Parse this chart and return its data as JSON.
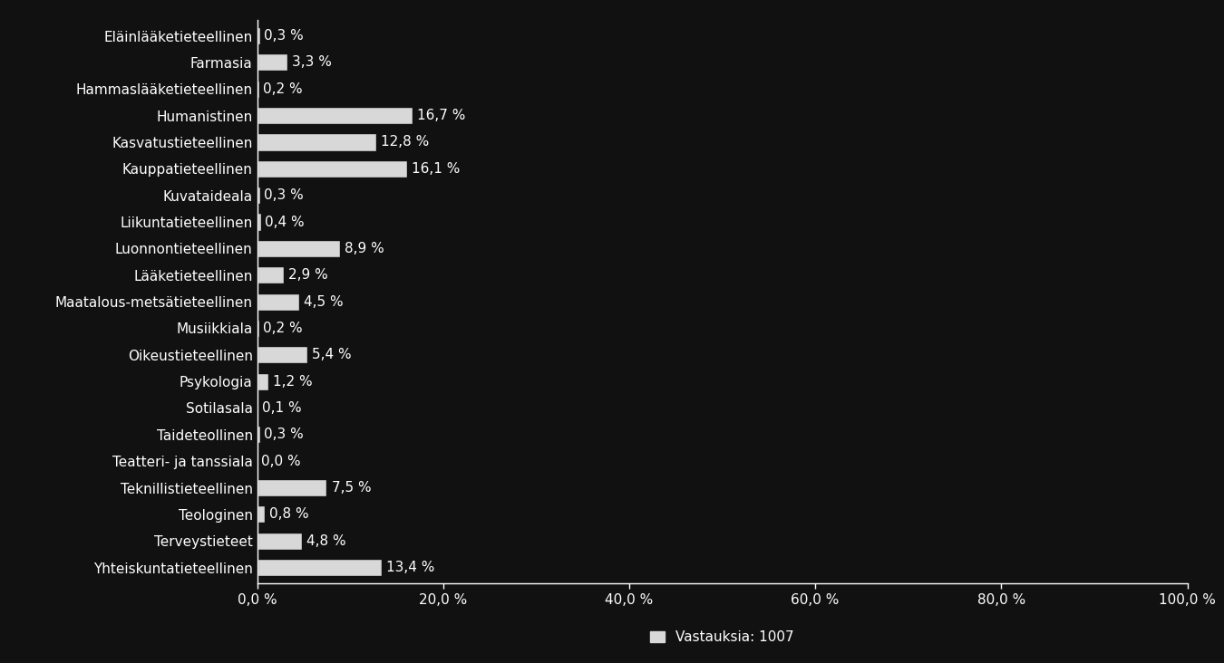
{
  "categories": [
    "Eläinlääketieteellinen",
    "Farmasia",
    "Hammaslääketieteellinen",
    "Humanistinen",
    "Kasvatustieteellinen",
    "Kauppatieteellinen",
    "Kuvataideala",
    "Liikuntatieteellinen",
    "Luonnontieteellinen",
    "Lääketieteellinen",
    "Maatalous-metsätieteellinen",
    "Musiikkiala",
    "Oikeustieteellinen",
    "Psykologia",
    "Sotilasala",
    "Taideteollinen",
    "Teatteri- ja tanssiala",
    "Teknillistieteellinen",
    "Teologinen",
    "Terveystieteet",
    "Yhteiskuntatieteellinen"
  ],
  "values": [
    0.3,
    3.3,
    0.2,
    16.7,
    12.8,
    16.1,
    0.3,
    0.4,
    8.9,
    2.9,
    4.5,
    0.2,
    5.4,
    1.2,
    0.1,
    0.3,
    0.0,
    7.5,
    0.8,
    4.8,
    13.4
  ],
  "labels": [
    "0,3 %",
    "3,3 %",
    "0,2 %",
    "16,7 %",
    "12,8 %",
    "16,1 %",
    "0,3 %",
    "0,4 %",
    "8,9 %",
    "2,9 %",
    "4,5 %",
    "0,2 %",
    "5,4 %",
    "1,2 %",
    "0,1 %",
    "0,3 %",
    "0,0 %",
    "7,5 %",
    "0,8 %",
    "4,8 %",
    "13,4 %"
  ],
  "bar_color": "#d8d8d8",
  "background_color": "#111111",
  "text_color": "#ffffff",
  "xlim": [
    0,
    100
  ],
  "xticks": [
    0,
    20,
    40,
    60,
    80,
    100
  ],
  "xtick_labels": [
    "0,0 %",
    "20,0 %",
    "40,0 %",
    "60,0 %",
    "80,0 %",
    "100,0 %"
  ],
  "legend_label": "Vastauksia: 1007",
  "font_size": 11,
  "label_font_size": 11,
  "bar_height": 0.65
}
